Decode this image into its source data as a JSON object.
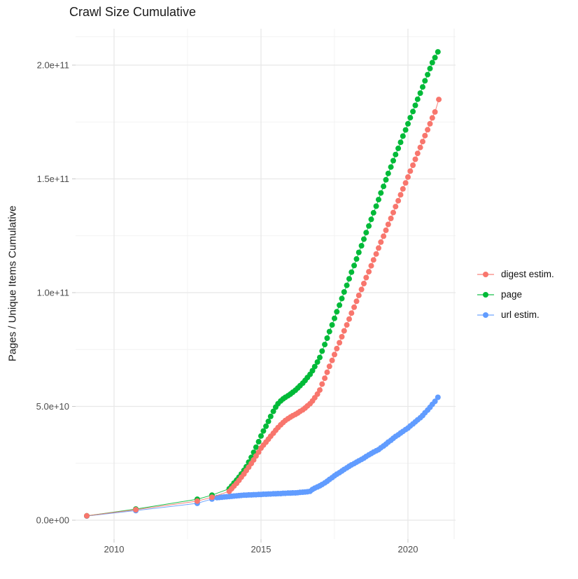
{
  "title": "Crawl Size Cumulative",
  "legend": {
    "items": [
      {
        "label": "digest estim.",
        "color": "#F8766D"
      },
      {
        "label": "page",
        "color": "#00BA38"
      },
      {
        "label": "url estim.",
        "color": "#619CFF"
      }
    ]
  },
  "chart_data": {
    "type": "scatter",
    "subtype": "line+point",
    "title": "Crawl Size Cumulative",
    "xlabel": "",
    "ylabel": "Pages / Unique Items Cumulative",
    "legend_position": "right",
    "grid": true,
    "value_unit_multiplier": 1000000000.0,
    "x_range": [
      2008.69,
      2021.62
    ],
    "y_range": [
      -8.31,
      216
    ],
    "x_ticks": [
      {
        "value": 2010,
        "label": "2010"
      },
      {
        "value": 2015,
        "label": "2015"
      },
      {
        "value": 2020,
        "label": "2020"
      }
    ],
    "x_minor_ticks": [
      2012.5,
      2017.5
    ],
    "y_ticks": [
      {
        "value": 0,
        "label": "0.0e+00"
      },
      {
        "value": 50,
        "label": "5.0e+10"
      },
      {
        "value": 100,
        "label": "1.0e+11"
      },
      {
        "value": 150,
        "label": "1.5e+11"
      },
      {
        "value": 200,
        "label": "2.0e+11"
      }
    ],
    "y_minor_ticks": [
      25,
      75,
      125,
      175,
      212.5
    ],
    "series": [
      {
        "name": "url estim.",
        "color": "#619CFF",
        "points": [
          [
            2009.07,
            1.8
          ],
          [
            2010.74,
            4.2
          ],
          [
            2012.83,
            7.4
          ],
          [
            2013.33,
            9.3
          ],
          [
            2013.5,
            9.9
          ],
          [
            2013.58,
            10.0
          ],
          [
            2013.67,
            10.1
          ],
          [
            2013.75,
            10.2
          ],
          [
            2013.83,
            10.3
          ],
          [
            2013.92,
            10.4
          ],
          [
            2014.0,
            10.5
          ],
          [
            2014.08,
            10.6
          ],
          [
            2014.17,
            10.7
          ],
          [
            2014.25,
            10.8
          ],
          [
            2014.33,
            10.9
          ],
          [
            2014.42,
            11.0
          ],
          [
            2014.5,
            11.0
          ],
          [
            2014.58,
            11.1
          ],
          [
            2014.67,
            11.1
          ],
          [
            2014.75,
            11.2
          ],
          [
            2014.83,
            11.2
          ],
          [
            2014.92,
            11.3
          ],
          [
            2015.0,
            11.3
          ],
          [
            2015.08,
            11.4
          ],
          [
            2015.17,
            11.4
          ],
          [
            2015.25,
            11.5
          ],
          [
            2015.33,
            11.5
          ],
          [
            2015.42,
            11.6
          ],
          [
            2015.5,
            11.6
          ],
          [
            2015.58,
            11.7
          ],
          [
            2015.67,
            11.7
          ],
          [
            2015.75,
            11.8
          ],
          [
            2015.83,
            11.8
          ],
          [
            2015.92,
            11.9
          ],
          [
            2016.0,
            11.9
          ],
          [
            2016.08,
            12.0
          ],
          [
            2016.17,
            12.0
          ],
          [
            2016.25,
            12.1
          ],
          [
            2016.33,
            12.2
          ],
          [
            2016.42,
            12.3
          ],
          [
            2016.5,
            12.4
          ],
          [
            2016.58,
            12.5
          ],
          [
            2016.67,
            12.7
          ],
          [
            2016.75,
            13.5
          ],
          [
            2016.83,
            14.1
          ],
          [
            2016.92,
            14.6
          ],
          [
            2017.0,
            15.1
          ],
          [
            2017.08,
            15.7
          ],
          [
            2017.17,
            16.4
          ],
          [
            2017.25,
            17.1
          ],
          [
            2017.33,
            17.9
          ],
          [
            2017.42,
            18.7
          ],
          [
            2017.5,
            19.5
          ],
          [
            2017.58,
            20.2
          ],
          [
            2017.67,
            20.9
          ],
          [
            2017.75,
            21.6
          ],
          [
            2017.83,
            22.3
          ],
          [
            2017.92,
            23.0
          ],
          [
            2018.0,
            23.7
          ],
          [
            2018.08,
            24.3
          ],
          [
            2018.17,
            24.9
          ],
          [
            2018.25,
            25.5
          ],
          [
            2018.33,
            26.1
          ],
          [
            2018.42,
            26.7
          ],
          [
            2018.5,
            27.3
          ],
          [
            2018.58,
            28.0
          ],
          [
            2018.67,
            28.7
          ],
          [
            2018.75,
            29.3
          ],
          [
            2018.83,
            29.9
          ],
          [
            2018.92,
            30.5
          ],
          [
            2019.0,
            31.0
          ],
          [
            2019.08,
            31.8
          ],
          [
            2019.17,
            32.6
          ],
          [
            2019.25,
            33.4
          ],
          [
            2019.33,
            34.3
          ],
          [
            2019.42,
            35.1
          ],
          [
            2019.5,
            36.0
          ],
          [
            2019.58,
            36.8
          ],
          [
            2019.67,
            37.5
          ],
          [
            2019.75,
            38.3
          ],
          [
            2019.83,
            39.0
          ],
          [
            2019.92,
            39.8
          ],
          [
            2020.0,
            40.5
          ],
          [
            2020.08,
            41.4
          ],
          [
            2020.17,
            42.3
          ],
          [
            2020.25,
            43.2
          ],
          [
            2020.33,
            44.1
          ],
          [
            2020.42,
            45.0
          ],
          [
            2020.5,
            46.0
          ],
          [
            2020.58,
            47.2
          ],
          [
            2020.67,
            48.4
          ],
          [
            2020.75,
            49.6
          ],
          [
            2020.83,
            50.9
          ],
          [
            2020.92,
            52.2
          ],
          [
            2021.02,
            54.0
          ]
        ]
      },
      {
        "name": "page",
        "color": "#00BA38",
        "points": [
          [
            2009.07,
            1.9
          ],
          [
            2010.74,
            4.9
          ],
          [
            2012.83,
            9.2
          ],
          [
            2013.33,
            11.0
          ],
          [
            2013.92,
            13.8
          ],
          [
            2014.0,
            15.0
          ],
          [
            2014.08,
            16.3
          ],
          [
            2014.17,
            17.6
          ],
          [
            2014.25,
            18.9
          ],
          [
            2014.33,
            20.3
          ],
          [
            2014.42,
            21.9
          ],
          [
            2014.5,
            23.5
          ],
          [
            2014.58,
            25.5
          ],
          [
            2014.67,
            27.6
          ],
          [
            2014.75,
            29.8
          ],
          [
            2014.83,
            32.1
          ],
          [
            2014.92,
            34.5
          ],
          [
            2015.0,
            37.0
          ],
          [
            2015.08,
            39.2
          ],
          [
            2015.17,
            41.3
          ],
          [
            2015.25,
            43.4
          ],
          [
            2015.33,
            45.6
          ],
          [
            2015.42,
            47.8
          ],
          [
            2015.5,
            49.7
          ],
          [
            2015.58,
            51.2
          ],
          [
            2015.67,
            52.4
          ],
          [
            2015.75,
            53.3
          ],
          [
            2015.83,
            54.0
          ],
          [
            2015.92,
            54.7
          ],
          [
            2016.0,
            55.4
          ],
          [
            2016.08,
            56.2
          ],
          [
            2016.17,
            57.1
          ],
          [
            2016.25,
            58.1
          ],
          [
            2016.33,
            59.1
          ],
          [
            2016.42,
            60.2
          ],
          [
            2016.5,
            61.4
          ],
          [
            2016.58,
            62.7
          ],
          [
            2016.67,
            64.1
          ],
          [
            2016.75,
            65.7
          ],
          [
            2016.83,
            67.5
          ],
          [
            2016.92,
            69.5
          ],
          [
            2017.0,
            71.5
          ],
          [
            2017.08,
            74.3
          ],
          [
            2017.17,
            77.2
          ],
          [
            2017.25,
            80.0
          ],
          [
            2017.33,
            82.9
          ],
          [
            2017.42,
            85.8
          ],
          [
            2017.5,
            88.7
          ],
          [
            2017.58,
            91.6
          ],
          [
            2017.67,
            94.5
          ],
          [
            2017.75,
            97.4
          ],
          [
            2017.83,
            100.3
          ],
          [
            2017.92,
            103.2
          ],
          [
            2018.0,
            106.1
          ],
          [
            2018.08,
            109.0
          ],
          [
            2018.17,
            111.9
          ],
          [
            2018.25,
            114.8
          ],
          [
            2018.33,
            117.7
          ],
          [
            2018.42,
            120.6
          ],
          [
            2018.5,
            123.5
          ],
          [
            2018.58,
            126.4
          ],
          [
            2018.67,
            129.3
          ],
          [
            2018.75,
            132.2
          ],
          [
            2018.83,
            135.1
          ],
          [
            2018.92,
            138.0
          ],
          [
            2019.0,
            140.9
          ],
          [
            2019.08,
            143.8
          ],
          [
            2019.17,
            146.7
          ],
          [
            2019.25,
            149.6
          ],
          [
            2019.33,
            152.4
          ],
          [
            2019.42,
            155.2
          ],
          [
            2019.5,
            158.0
          ],
          [
            2019.58,
            160.7
          ],
          [
            2019.67,
            163.4
          ],
          [
            2019.75,
            166.1
          ],
          [
            2019.83,
            168.8
          ],
          [
            2019.92,
            171.5
          ],
          [
            2020.0,
            174.2
          ],
          [
            2020.08,
            176.9
          ],
          [
            2020.17,
            179.6
          ],
          [
            2020.25,
            182.3
          ],
          [
            2020.33,
            185.0
          ],
          [
            2020.42,
            187.7
          ],
          [
            2020.5,
            190.4
          ],
          [
            2020.58,
            193.1
          ],
          [
            2020.67,
            195.8
          ],
          [
            2020.75,
            198.5
          ],
          [
            2020.83,
            201.1
          ],
          [
            2020.92,
            203.3
          ],
          [
            2021.02,
            205.8
          ]
        ]
      },
      {
        "name": "digest estim.",
        "color": "#F8766D",
        "points": [
          [
            2009.07,
            1.9
          ],
          [
            2010.74,
            4.6
          ],
          [
            2012.83,
            8.4
          ],
          [
            2013.33,
            10.1
          ],
          [
            2013.92,
            12.7
          ],
          [
            2014.0,
            13.8
          ],
          [
            2014.08,
            15.0
          ],
          [
            2014.17,
            16.2
          ],
          [
            2014.25,
            17.5
          ],
          [
            2014.33,
            18.9
          ],
          [
            2014.42,
            20.3
          ],
          [
            2014.5,
            21.8
          ],
          [
            2014.58,
            23.3
          ],
          [
            2014.67,
            24.9
          ],
          [
            2014.75,
            26.5
          ],
          [
            2014.83,
            28.2
          ],
          [
            2014.92,
            29.9
          ],
          [
            2015.0,
            31.7
          ],
          [
            2015.08,
            33.0
          ],
          [
            2015.17,
            34.3
          ],
          [
            2015.25,
            35.6
          ],
          [
            2015.33,
            36.9
          ],
          [
            2015.42,
            38.2
          ],
          [
            2015.5,
            39.5
          ],
          [
            2015.58,
            40.7
          ],
          [
            2015.67,
            41.9
          ],
          [
            2015.75,
            42.9
          ],
          [
            2015.83,
            43.8
          ],
          [
            2015.92,
            44.6
          ],
          [
            2016.0,
            45.3
          ],
          [
            2016.08,
            45.9
          ],
          [
            2016.17,
            46.5
          ],
          [
            2016.25,
            47.1
          ],
          [
            2016.33,
            47.8
          ],
          [
            2016.42,
            48.5
          ],
          [
            2016.5,
            49.3
          ],
          [
            2016.58,
            50.2
          ],
          [
            2016.67,
            51.2
          ],
          [
            2016.75,
            52.4
          ],
          [
            2016.83,
            53.8
          ],
          [
            2016.92,
            55.4
          ],
          [
            2017.0,
            57.2
          ],
          [
            2017.08,
            59.8
          ],
          [
            2017.17,
            62.4
          ],
          [
            2017.25,
            65.0
          ],
          [
            2017.33,
            67.6
          ],
          [
            2017.42,
            70.2
          ],
          [
            2017.5,
            72.8
          ],
          [
            2017.58,
            75.4
          ],
          [
            2017.67,
            78.0
          ],
          [
            2017.75,
            80.6
          ],
          [
            2017.83,
            83.2
          ],
          [
            2017.92,
            85.8
          ],
          [
            2018.0,
            88.4
          ],
          [
            2018.08,
            91.0
          ],
          [
            2018.17,
            93.6
          ],
          [
            2018.25,
            96.2
          ],
          [
            2018.33,
            98.8
          ],
          [
            2018.42,
            101.4
          ],
          [
            2018.5,
            104.0
          ],
          [
            2018.58,
            106.6
          ],
          [
            2018.67,
            109.2
          ],
          [
            2018.75,
            111.8
          ],
          [
            2018.83,
            114.4
          ],
          [
            2018.92,
            117.0
          ],
          [
            2019.0,
            119.6
          ],
          [
            2019.08,
            122.2
          ],
          [
            2019.17,
            124.8
          ],
          [
            2019.25,
            127.4
          ],
          [
            2019.33,
            130.0
          ],
          [
            2019.42,
            132.6
          ],
          [
            2019.5,
            135.2
          ],
          [
            2019.58,
            137.8
          ],
          [
            2019.67,
            140.4
          ],
          [
            2019.75,
            143.0
          ],
          [
            2019.83,
            145.6
          ],
          [
            2019.92,
            148.2
          ],
          [
            2020.0,
            150.8
          ],
          [
            2020.08,
            153.4
          ],
          [
            2020.17,
            156.0
          ],
          [
            2020.25,
            158.6
          ],
          [
            2020.33,
            161.2
          ],
          [
            2020.42,
            163.8
          ],
          [
            2020.5,
            166.4
          ],
          [
            2020.58,
            169.0
          ],
          [
            2020.67,
            171.6
          ],
          [
            2020.75,
            174.2
          ],
          [
            2020.83,
            176.8
          ],
          [
            2020.92,
            179.4
          ],
          [
            2021.05,
            184.9
          ]
        ]
      }
    ]
  }
}
